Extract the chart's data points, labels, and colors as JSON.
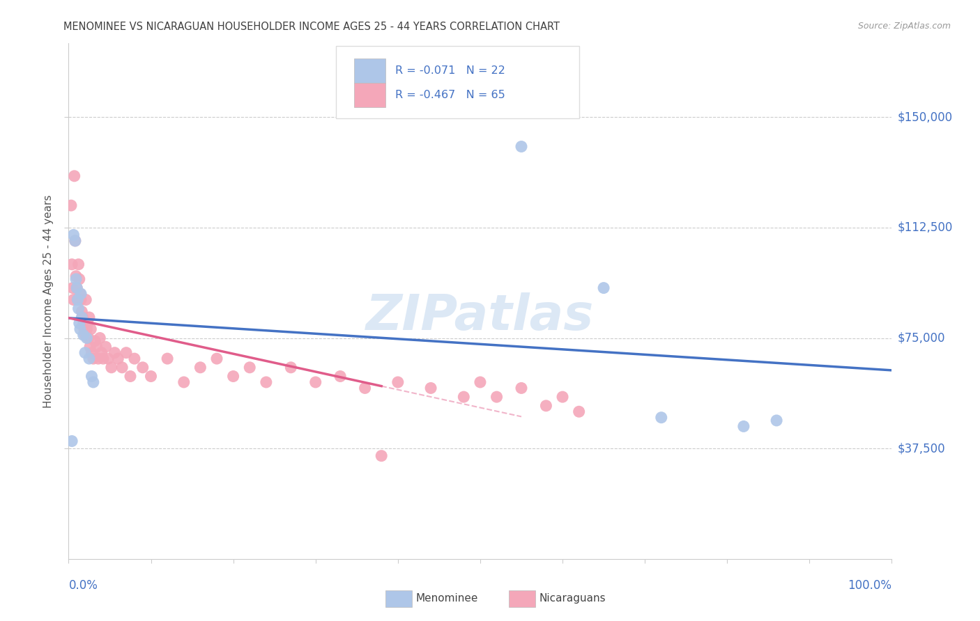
{
  "title": "MENOMINEE VS NICARAGUAN HOUSEHOLDER INCOME AGES 25 - 44 YEARS CORRELATION CHART",
  "source": "Source: ZipAtlas.com",
  "ylabel": "Householder Income Ages 25 - 44 years",
  "xlim": [
    0.0,
    1.0
  ],
  "ylim": [
    0,
    175000
  ],
  "yticks": [
    37500,
    75000,
    112500,
    150000
  ],
  "ytick_labels": [
    "$37,500",
    "$75,000",
    "$112,500",
    "$150,000"
  ],
  "menominee_R": "-0.071",
  "menominee_N": "22",
  "nicaraguan_R": "-0.467",
  "nicaraguan_N": "65",
  "menominee_color": "#aec6e8",
  "nicaraguan_color": "#f4a7b9",
  "menominee_line_color": "#4472c4",
  "nicaraguan_line_color": "#e05c8a",
  "watermark_color": "#dce8f5",
  "legend_text_color": "#4472c4",
  "label_color": "#4472c4",
  "title_color": "#404040",
  "source_color": "#999999",
  "grid_color": "#cccccc",
  "spine_color": "#cccccc",
  "menominee_x": [
    0.004,
    0.006,
    0.008,
    0.009,
    0.01,
    0.011,
    0.012,
    0.013,
    0.014,
    0.015,
    0.016,
    0.018,
    0.02,
    0.022,
    0.025,
    0.028,
    0.03,
    0.55,
    0.65,
    0.72,
    0.82,
    0.86
  ],
  "menominee_y": [
    40000,
    110000,
    108000,
    95000,
    92000,
    88000,
    85000,
    80000,
    78000,
    90000,
    82000,
    76000,
    70000,
    75000,
    68000,
    62000,
    60000,
    140000,
    92000,
    48000,
    45000,
    47000
  ],
  "nicaraguan_x": [
    0.003,
    0.004,
    0.005,
    0.006,
    0.007,
    0.008,
    0.009,
    0.01,
    0.011,
    0.012,
    0.013,
    0.014,
    0.015,
    0.016,
    0.017,
    0.018,
    0.019,
    0.02,
    0.021,
    0.022,
    0.023,
    0.024,
    0.025,
    0.026,
    0.027,
    0.028,
    0.03,
    0.032,
    0.034,
    0.036,
    0.038,
    0.04,
    0.042,
    0.045,
    0.048,
    0.052,
    0.056,
    0.06,
    0.065,
    0.07,
    0.075,
    0.08,
    0.09,
    0.1,
    0.12,
    0.14,
    0.16,
    0.18,
    0.2,
    0.22,
    0.24,
    0.27,
    0.3,
    0.33,
    0.36,
    0.4,
    0.44,
    0.48,
    0.5,
    0.52,
    0.55,
    0.58,
    0.6,
    0.62,
    0.38
  ],
  "nicaraguan_y": [
    120000,
    100000,
    92000,
    88000,
    130000,
    108000,
    96000,
    92000,
    88000,
    100000,
    95000,
    90000,
    88000,
    84000,
    82000,
    80000,
    78000,
    76000,
    88000,
    78000,
    80000,
    75000,
    82000,
    72000,
    78000,
    70000,
    68000,
    74000,
    72000,
    68000,
    75000,
    70000,
    68000,
    72000,
    68000,
    65000,
    70000,
    68000,
    65000,
    70000,
    62000,
    68000,
    65000,
    62000,
    68000,
    60000,
    65000,
    68000,
    62000,
    65000,
    60000,
    65000,
    60000,
    62000,
    58000,
    60000,
    58000,
    55000,
    60000,
    55000,
    58000,
    52000,
    55000,
    50000,
    35000
  ]
}
